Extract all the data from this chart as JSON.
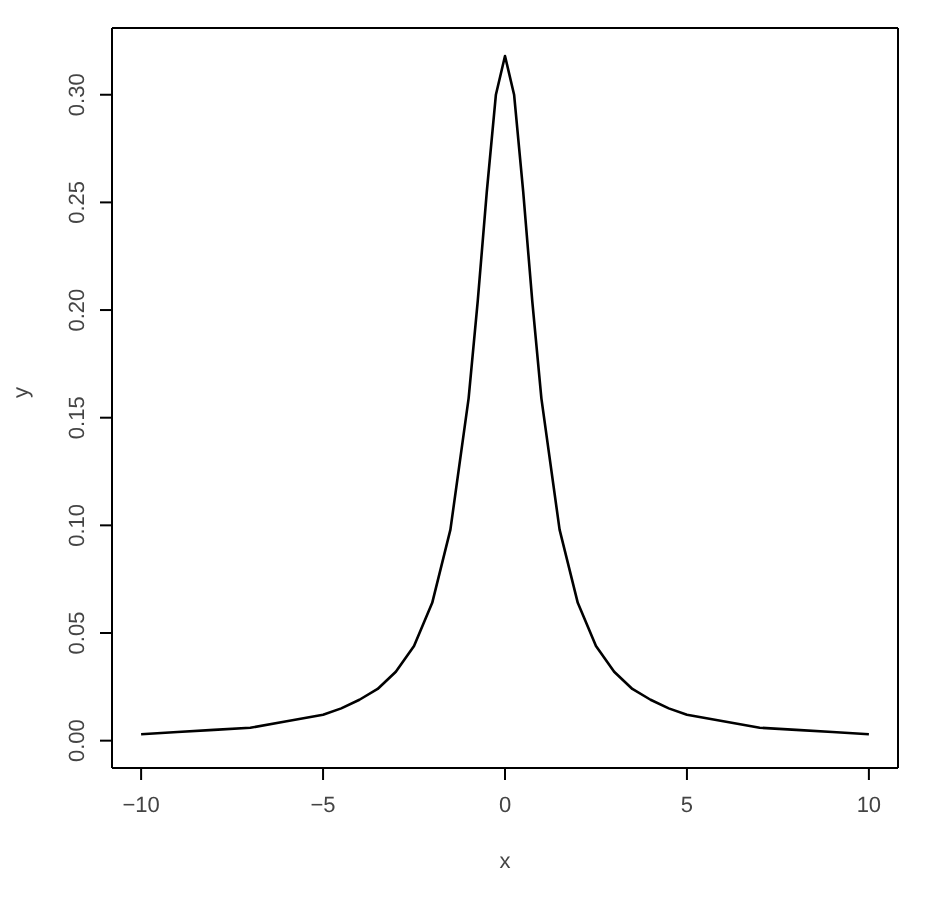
{
  "chart_data": {
    "type": "line",
    "xlabel": "x",
    "ylabel": "y",
    "x": [
      -10,
      -9,
      -8,
      -7,
      -6,
      -5,
      -4.5,
      -4,
      -3.5,
      -3,
      -2.5,
      -2,
      -1.5,
      -1,
      -0.75,
      -0.5,
      -0.25,
      0,
      0.25,
      0.5,
      0.75,
      1,
      1.5,
      2,
      2.5,
      3,
      3.5,
      4,
      4.5,
      5,
      6,
      7,
      8,
      9,
      10
    ],
    "series": [
      {
        "color": "#000000",
        "values": [
          0.003,
          0.004,
          0.005,
          0.006,
          0.009,
          0.012,
          0.015,
          0.019,
          0.024,
          0.032,
          0.044,
          0.064,
          0.098,
          0.159,
          0.204,
          0.255,
          0.3,
          0.318,
          0.3,
          0.255,
          0.204,
          0.159,
          0.098,
          0.064,
          0.044,
          0.032,
          0.024,
          0.019,
          0.015,
          0.012,
          0.009,
          0.006,
          0.005,
          0.004,
          0.003
        ]
      }
    ],
    "xlim": [
      -10.8,
      10.8
    ],
    "ylim": [
      -0.0127,
      0.331
    ],
    "xticks": [
      -10,
      -5,
      0,
      5,
      10
    ],
    "yticks": [
      {
        "value": 0,
        "label": "0.00"
      },
      {
        "value": 0.05,
        "label": "0.05"
      },
      {
        "value": 0.1,
        "label": "0.10"
      },
      {
        "value": 0.15,
        "label": "0.15"
      },
      {
        "value": 0.2,
        "label": "0.20"
      },
      {
        "value": 0.25,
        "label": "0.25"
      },
      {
        "value": 0.3,
        "label": "0.30"
      }
    ],
    "grid": false,
    "legend": false,
    "marker": "none",
    "line_style": "solid"
  }
}
